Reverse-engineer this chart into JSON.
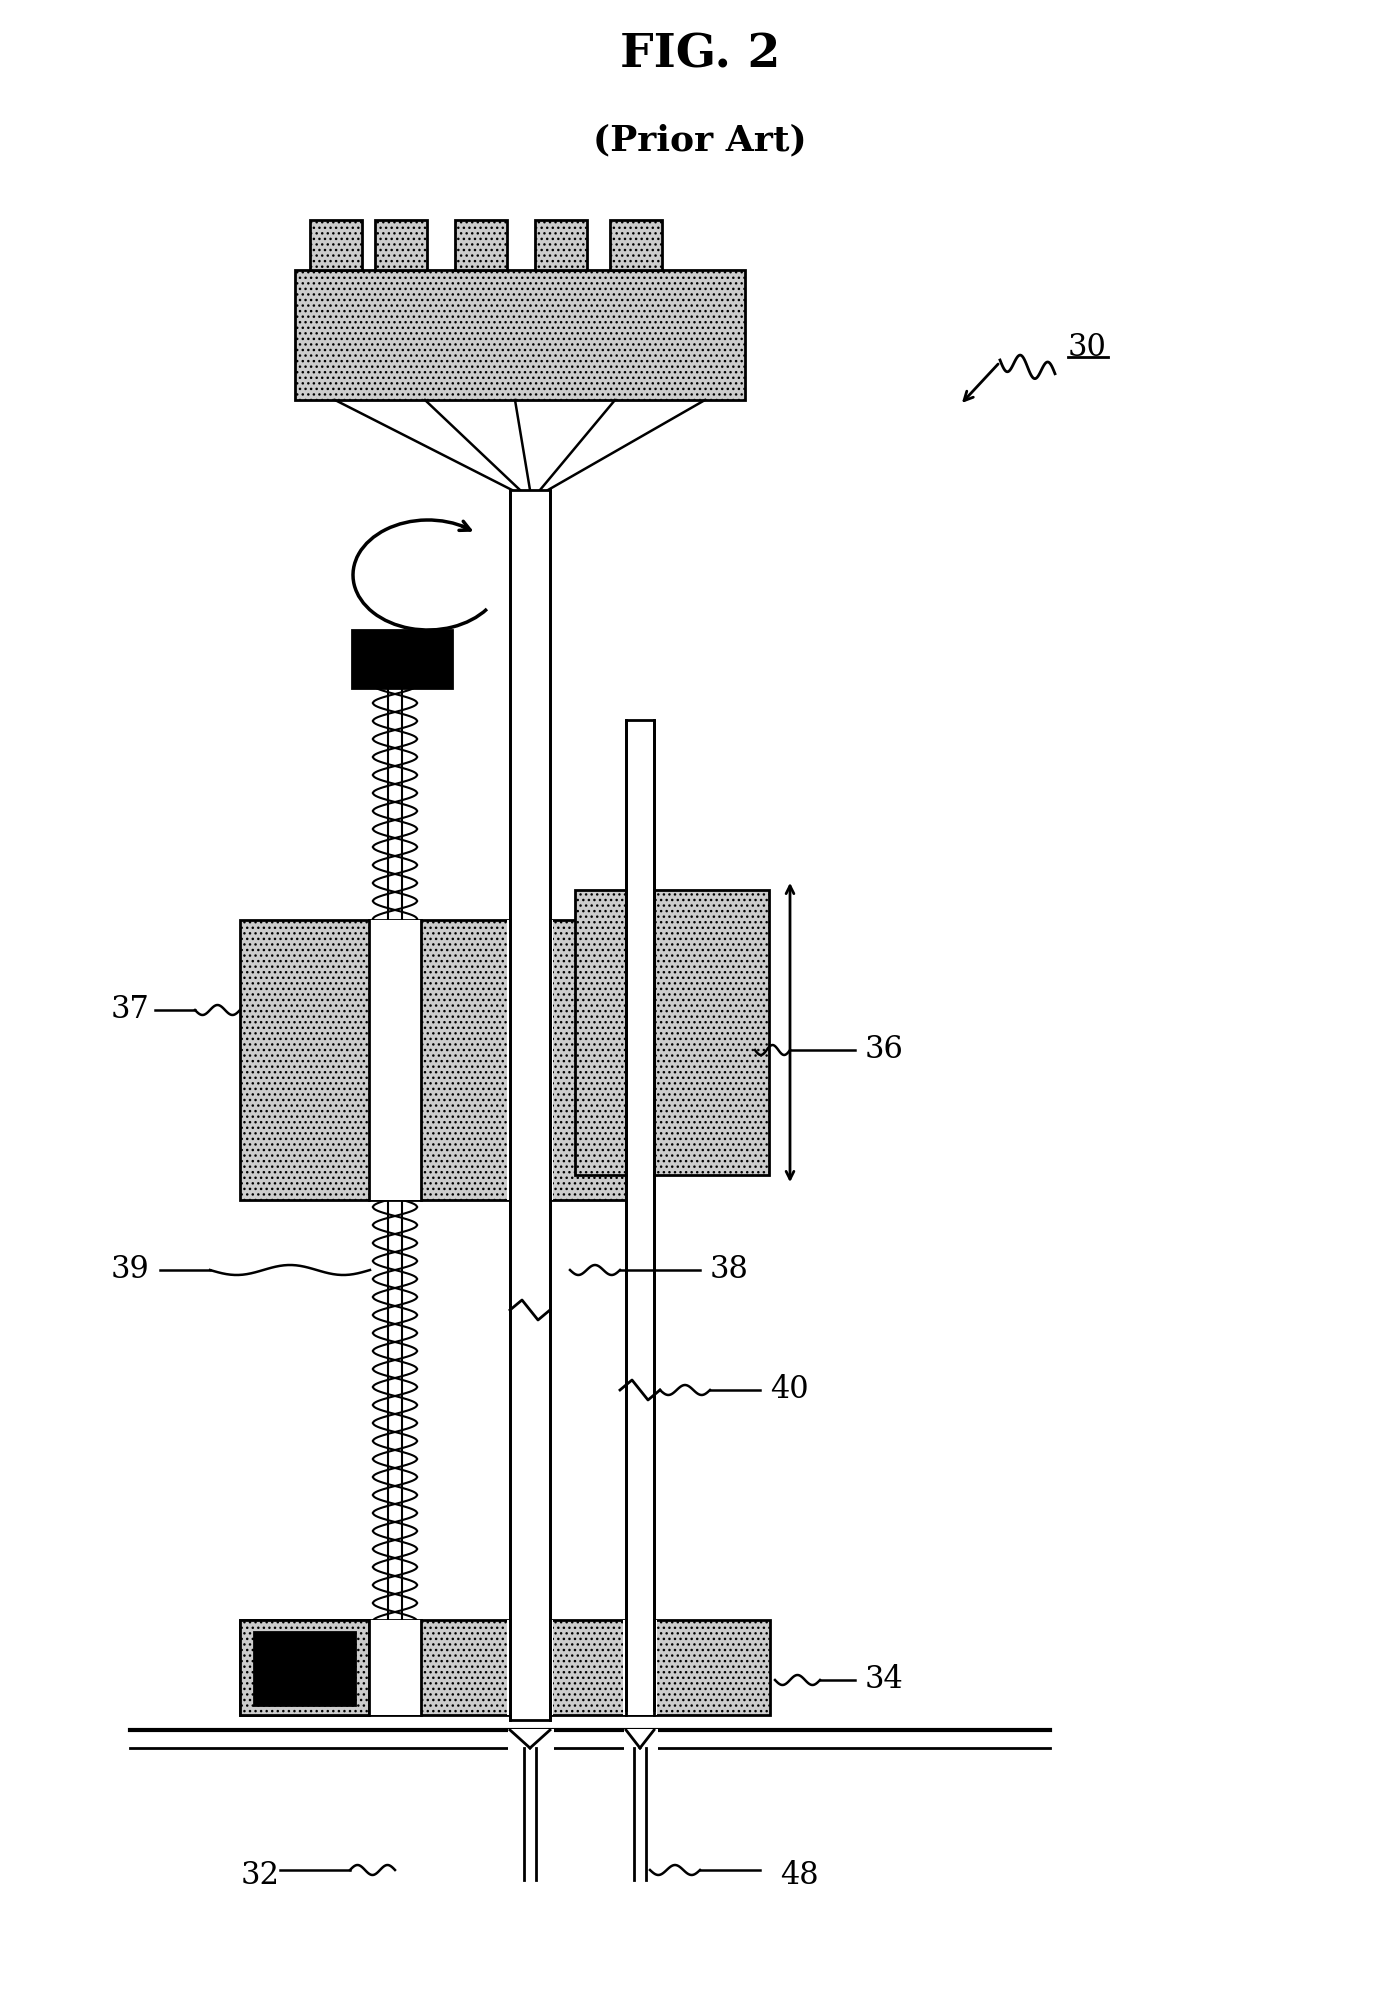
{
  "title": "FIG. 2",
  "subtitle": "(Prior Art)",
  "bg_color": "#ffffff",
  "fig_width": 14.0,
  "fig_height": 20.01,
  "dpi": 100
}
